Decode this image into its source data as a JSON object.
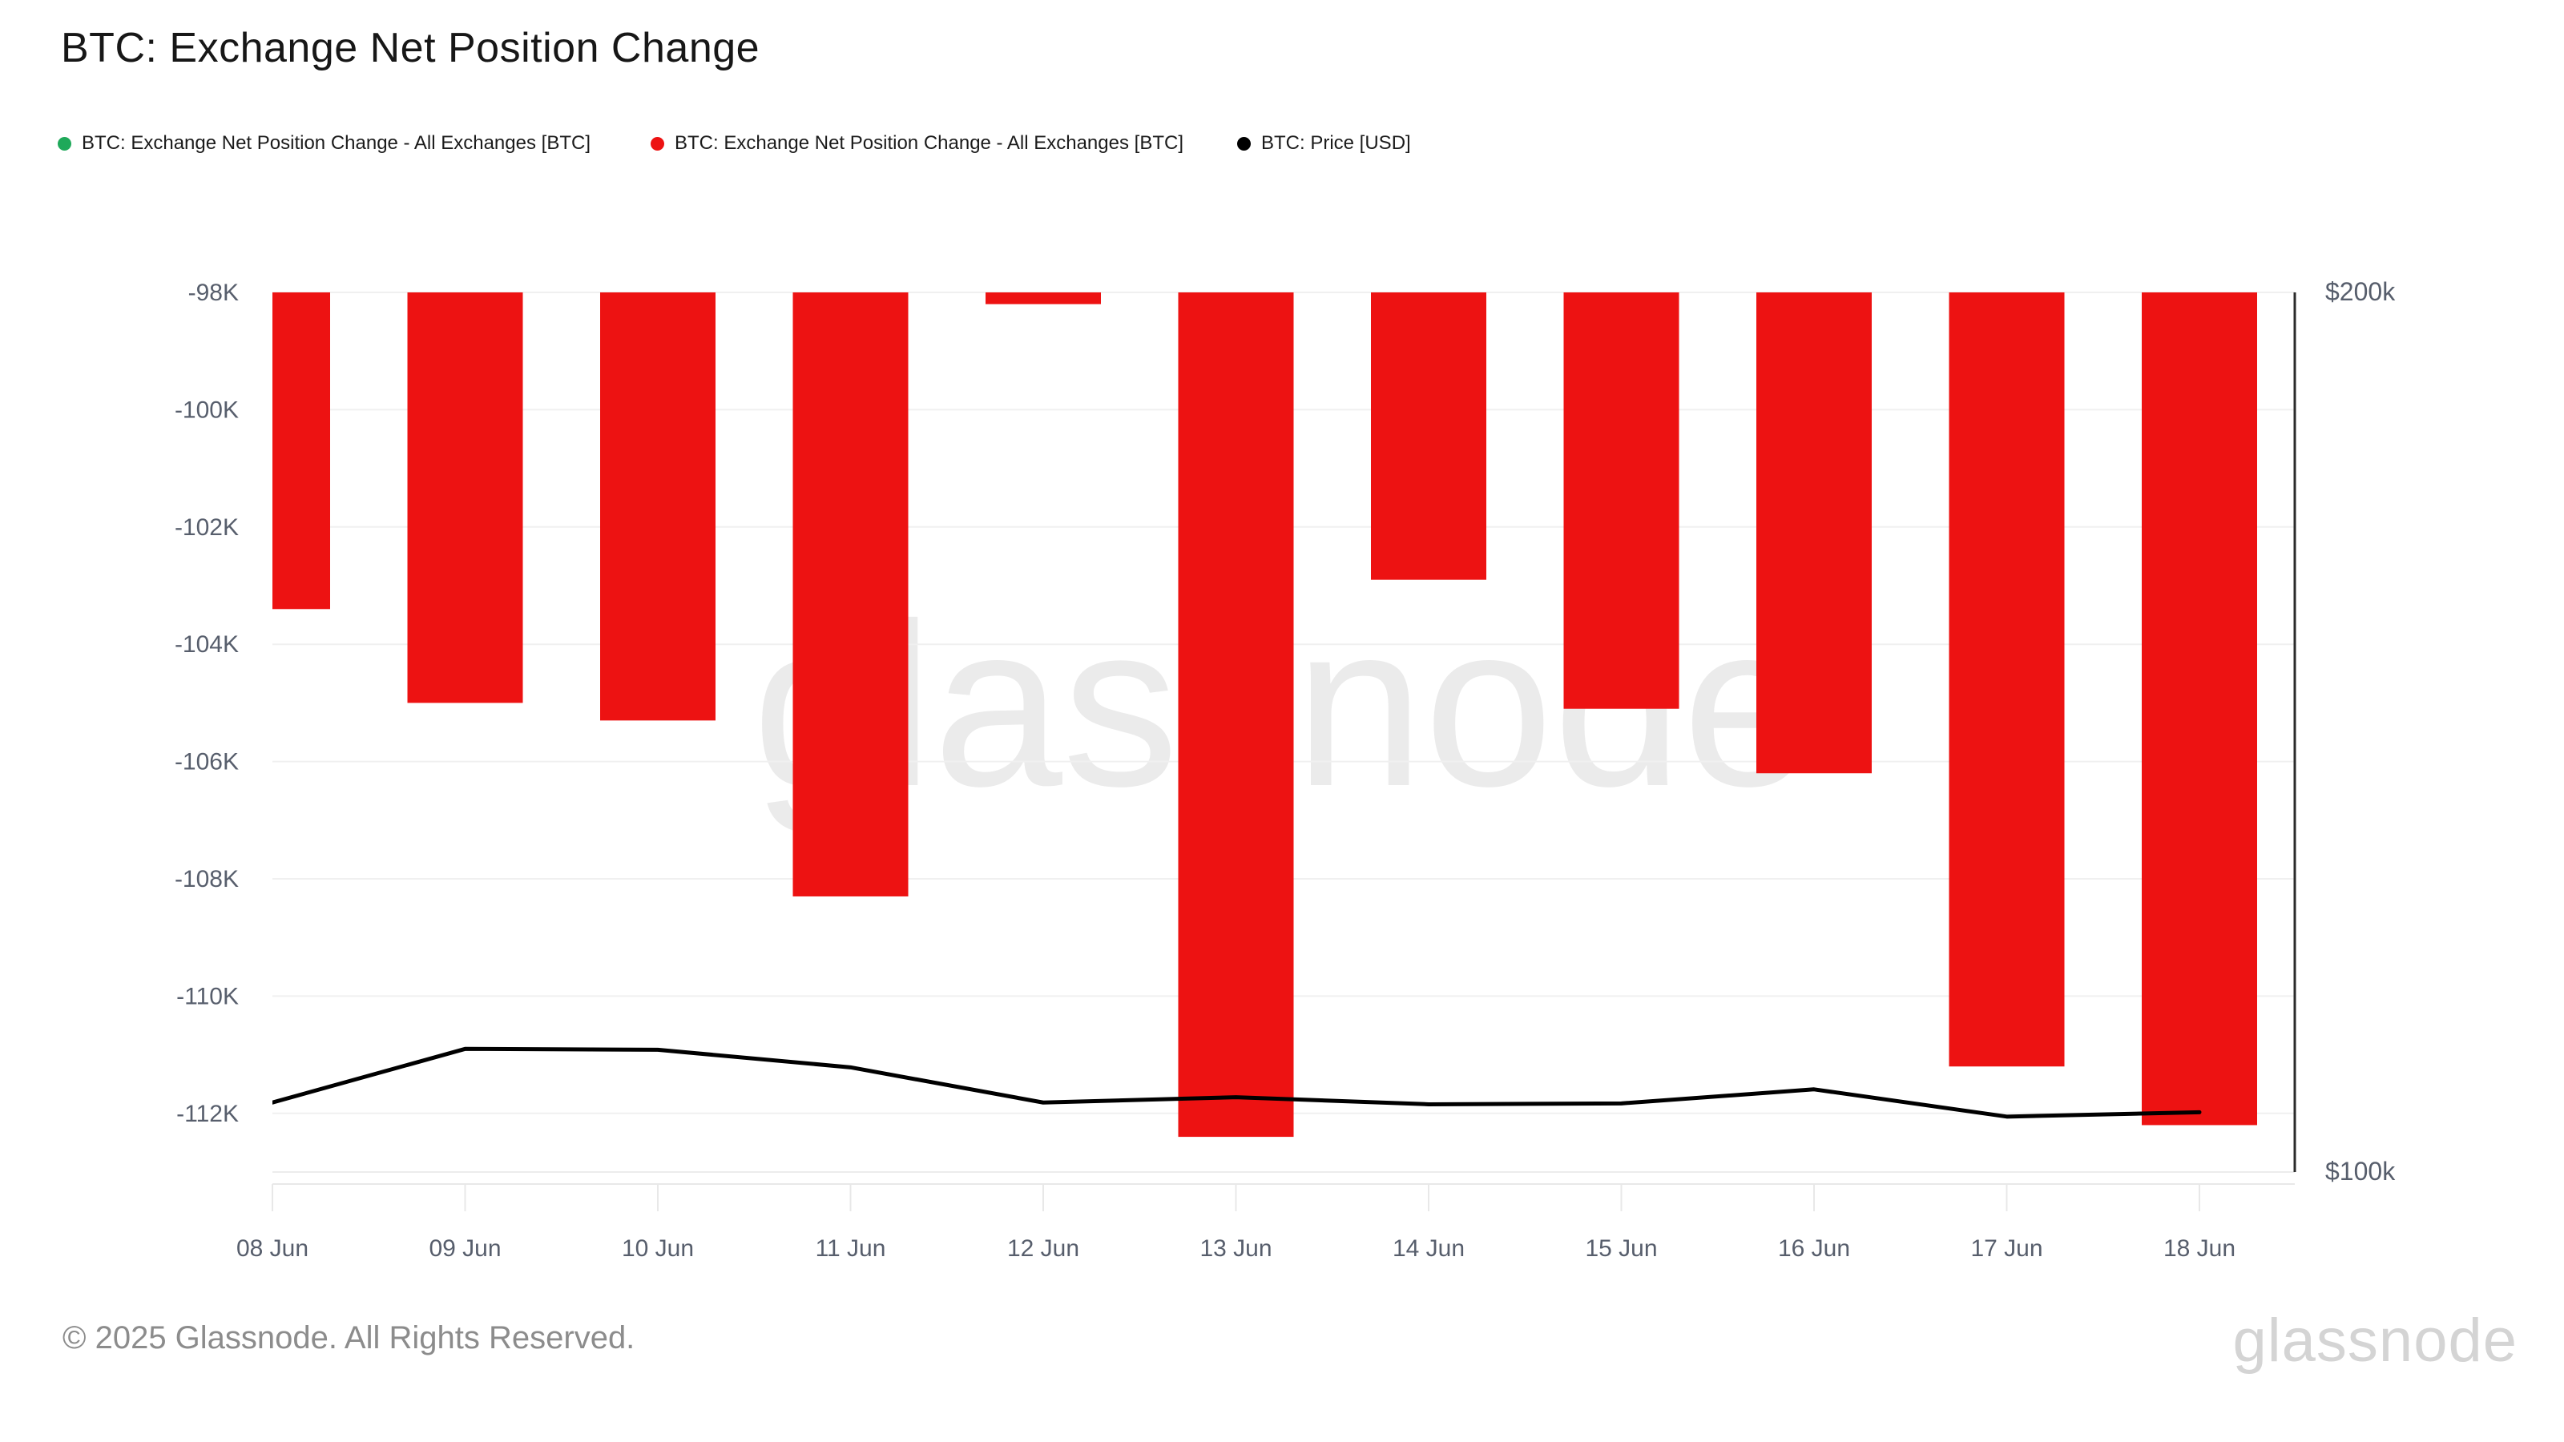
{
  "header": {
    "title": "BTC: Exchange Net Position Change"
  },
  "legend": {
    "items": [
      {
        "label": "BTC: Exchange Net Position Change - All Exchanges [BTC]",
        "color": "#1fa95a"
      },
      {
        "label": "BTC: Exchange Net Position Change - All Exchanges [BTC]",
        "color": "#ed1212"
      },
      {
        "label": "BTC: Price [USD]",
        "color": "#000000"
      }
    ]
  },
  "chart_data": {
    "type": "bar",
    "title": "BTC: Exchange Net Position Change",
    "categories": [
      "08 Jun",
      "09 Jun",
      "10 Jun",
      "11 Jun",
      "12 Jun",
      "13 Jun",
      "14 Jun",
      "15 Jun",
      "16 Jun",
      "17 Jun",
      "18 Jun"
    ],
    "series": [
      {
        "name": "BTC: Exchange Net Position Change - All Exchanges [BTC]",
        "type": "bar",
        "axis": "left",
        "color": "#1fa95a",
        "values": []
      },
      {
        "name": "BTC: Exchange Net Position Change - All Exchanges [BTC]",
        "type": "bar",
        "axis": "left",
        "color": "#ed1212",
        "values": [
          -103400,
          -105000,
          -105300,
          -108300,
          -98200,
          -112400,
          -102900,
          -105100,
          -106200,
          -111200,
          -112200
        ]
      },
      {
        "name": "BTC: Price [USD]",
        "type": "line",
        "axis": "right",
        "color": "#000000",
        "values": [
          107900,
          114000,
          113900,
          111900,
          107900,
          108500,
          107700,
          107800,
          109400,
          106300,
          106800
        ]
      }
    ],
    "left_axis": {
      "tick_labels": [
        "-98K",
        "-100K",
        "-102K",
        "-104K",
        "-106K",
        "-108K",
        "-110K",
        "-112K"
      ],
      "tick_values": [
        -98000,
        -100000,
        -102000,
        -104000,
        -106000,
        -108000,
        -110000,
        -112000
      ],
      "range_top": -98000,
      "range_bottom": -113000
    },
    "right_axis": {
      "tick_labels": [
        "$200k",
        "$100k"
      ],
      "tick_values": [
        200000,
        100000
      ],
      "range_top": 200000,
      "range_bottom": 100000
    },
    "grid": true,
    "legend_position": "top",
    "watermark": "glassnode"
  },
  "footer": {
    "copyright": "© 2025 Glassnode. All Rights Reserved.",
    "logo": "glassnode"
  }
}
